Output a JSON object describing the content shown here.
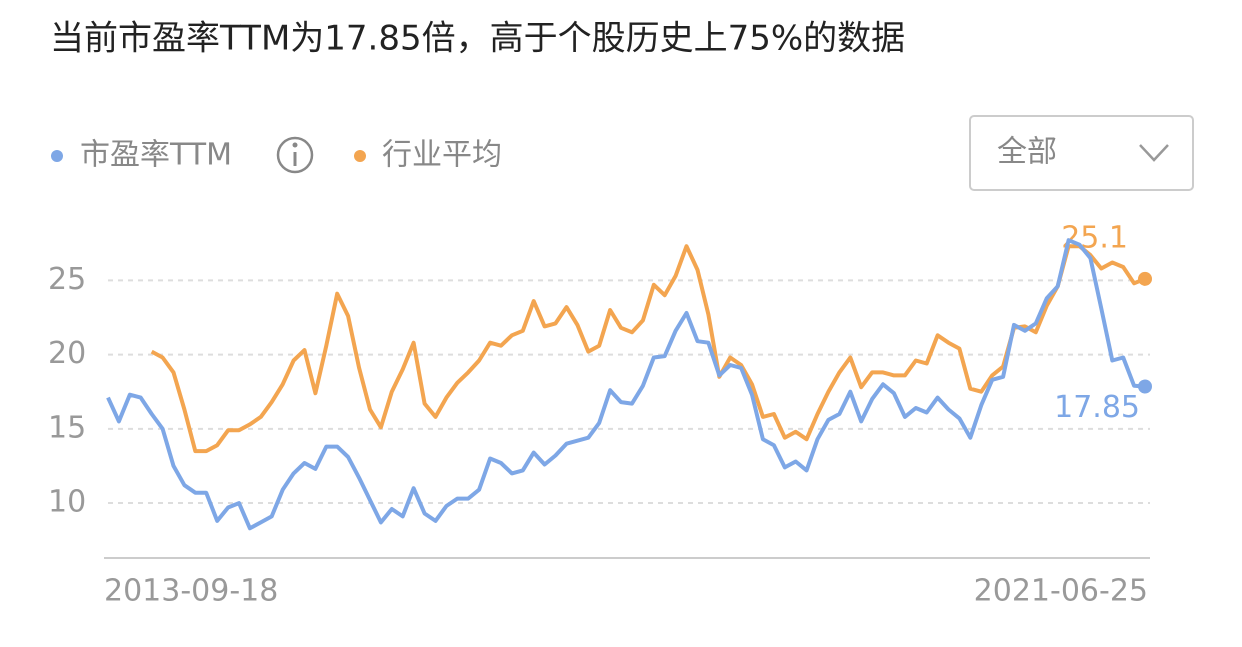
{
  "chart_data": {
    "type": "line",
    "title": "当前市盈率TTM为17.85倍，高于个股历史上75%的数据",
    "range_selector": "全部",
    "categories": [
      "2013-09-18",
      null,
      null,
      null,
      null,
      null,
      null,
      null,
      null,
      null,
      null,
      null,
      null,
      null,
      null,
      null,
      null,
      null,
      null,
      null,
      null,
      null,
      null,
      null,
      null,
      null,
      null,
      null,
      null,
      null,
      null,
      null,
      null,
      null,
      null,
      null,
      null,
      null,
      null,
      null,
      null,
      null,
      null,
      null,
      null,
      null,
      null,
      null,
      null,
      null,
      null,
      null,
      null,
      null,
      null,
      null,
      null,
      null,
      null,
      null,
      null,
      null,
      null,
      null,
      null,
      null,
      null,
      null,
      null,
      null,
      null,
      null,
      null,
      null,
      null,
      null,
      null,
      null,
      null,
      null,
      null,
      null,
      null,
      null,
      null,
      null,
      null,
      null,
      null,
      null,
      null,
      null,
      null,
      null,
      null,
      "2021-06-25"
    ],
    "series": [
      {
        "name": "市盈率TTM",
        "color": "#7ea7e6",
        "values": [
          17.1,
          15.5,
          17.3,
          17.1,
          16,
          15,
          12.5,
          11.2,
          10.7,
          10.7,
          8.8,
          9.7,
          10,
          8.3,
          8.7,
          9.1,
          10.9,
          12,
          12.7,
          12.3,
          13.8,
          13.8,
          13.1,
          11.7,
          10.2,
          8.7,
          9.6,
          9.1,
          11,
          9.3,
          8.8,
          9.8,
          10.3,
          10.3,
          10.9,
          13,
          12.7,
          12,
          12.2,
          13.4,
          12.6,
          13.2,
          14,
          14.2,
          14.4,
          15.4,
          17.6,
          16.8,
          16.7,
          17.9,
          19.8,
          19.9,
          21.6,
          22.8,
          20.9,
          20.8,
          18.6,
          19.3,
          19.1,
          17.3,
          14.3,
          13.9,
          12.4,
          12.8,
          12.2,
          14.3,
          15.6,
          16,
          17.5,
          15.5,
          17,
          18,
          17.4,
          15.8,
          16.4,
          16.1,
          17.1,
          16.3,
          15.7,
          14.4,
          16.6,
          18.3,
          18.5,
          22,
          21.6,
          22.1,
          23.8,
          24.6,
          27.7,
          27.4,
          26.5,
          23.1,
          19.6,
          19.8,
          17.9,
          17.85
        ]
      },
      {
        "name": "行业平均",
        "color": "#f3a550",
        "values": [
          null,
          null,
          null,
          null,
          20.2,
          19.8,
          18.8,
          16.3,
          13.5,
          13.5,
          13.9,
          14.9,
          14.9,
          15.3,
          15.8,
          16.8,
          18,
          19.6,
          20.3,
          17.4,
          20.6,
          24.1,
          22.6,
          19.1,
          16.3,
          15.1,
          17.5,
          19,
          20.8,
          16.7,
          15.8,
          17.1,
          18.1,
          18.8,
          19.6,
          20.8,
          20.6,
          21.3,
          21.6,
          23.6,
          21.9,
          22.1,
          23.2,
          22,
          20.2,
          20.6,
          23,
          21.8,
          21.5,
          22.3,
          24.7,
          24,
          25.3,
          27.3,
          25.7,
          22.7,
          18.5,
          19.8,
          19.3,
          18,
          15.8,
          16,
          14.4,
          14.8,
          14.3,
          16,
          17.5,
          18.8,
          19.8,
          17.8,
          18.8,
          18.8,
          18.6,
          18.6,
          19.6,
          19.4,
          21.3,
          20.8,
          20.4,
          17.7,
          17.5,
          18.6,
          19.2,
          21.8,
          21.9,
          21.5,
          23.3,
          24.6,
          27.3,
          27.3,
          26.7,
          25.8,
          26.2,
          25.9,
          24.8,
          25.1
        ]
      }
    ],
    "ylim": [
      6.3,
      29.4
    ],
    "yticks": [
      10,
      15,
      20,
      25
    ],
    "grid": true
  }
}
